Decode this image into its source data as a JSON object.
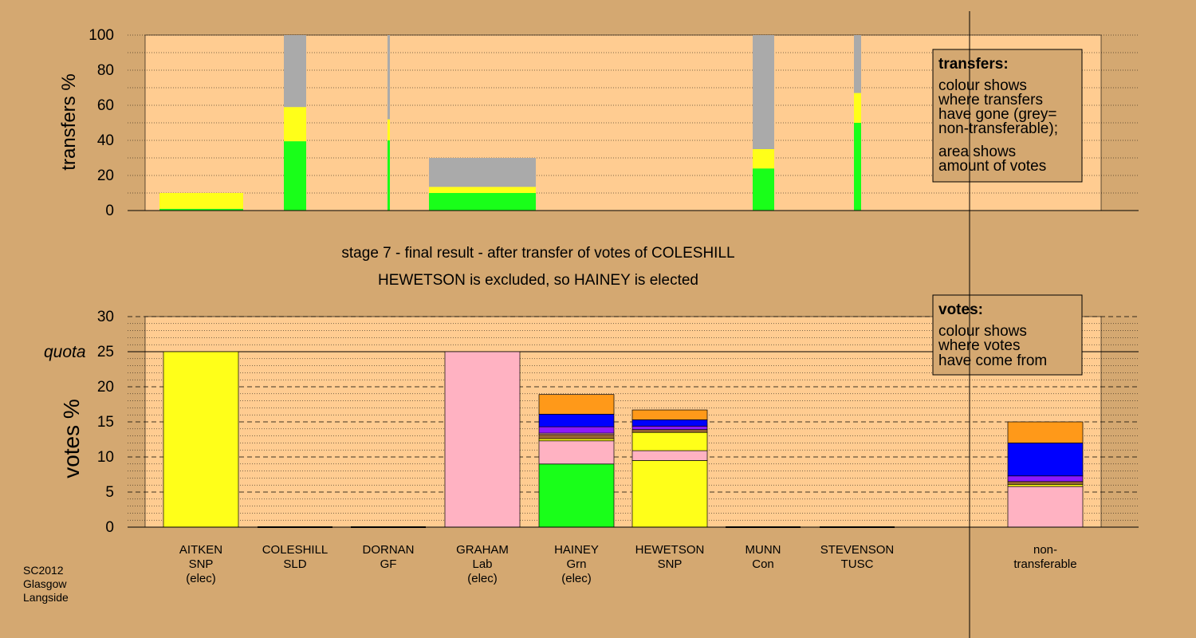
{
  "source_note": [
    "SC2012",
    "Glasgow",
    "Langside"
  ],
  "colors": {
    "background": "#d4a871",
    "panel": "#ffcc91",
    "green": "#19ff19",
    "yellow": "#ffff19",
    "grey": "#aaaaaa",
    "pink": "#ffb2c2",
    "purple": "#8c19ff",
    "blue": "#0000ff",
    "orange": "#ff9919",
    "brown": "#996633"
  },
  "chart_data": [
    {
      "type": "bar",
      "ylabel": "transfers %",
      "ylim": [
        0,
        100
      ],
      "yticks": [
        0,
        20,
        40,
        60,
        80,
        100
      ],
      "bars": [
        {
          "segments": [
            {
              "color": "green",
              "value": 1
            },
            {
              "color": "yellow",
              "value": 9
            }
          ]
        },
        {
          "segments": [
            {
              "color": "green",
              "value": 39.5
            },
            {
              "color": "yellow",
              "value": 19.5
            },
            {
              "color": "grey",
              "value": 41
            }
          ]
        },
        {
          "segments": [
            {
              "color": "green",
              "value": 40
            },
            {
              "color": "yellow",
              "value": 12
            },
            {
              "color": "grey",
              "value": 48
            }
          ]
        },
        {
          "segments": [
            {
              "color": "green",
              "value": 10
            },
            {
              "color": "yellow",
              "value": 3.5
            },
            {
              "color": "grey",
              "value": 16.5
            }
          ]
        },
        {
          "segments": [
            {
              "color": "green",
              "value": 24
            },
            {
              "color": "yellow",
              "value": 11
            },
            {
              "color": "grey",
              "value": 65
            }
          ]
        },
        {
          "segments": [
            {
              "color": "green",
              "value": 50
            },
            {
              "color": "yellow",
              "value": 17
            },
            {
              "color": "grey",
              "value": 33
            }
          ]
        }
      ],
      "legend": {
        "title": "transfers:",
        "lines": [
          "colour shows",
          "where transfers",
          "have gone (grey=",
          "non-transferable);",
          "area shows",
          "amount of votes"
        ]
      }
    },
    {
      "type": "bar",
      "title": "stage 7 - final result - after transfer of votes of COLESHILL",
      "subtitle": "HEWETSON is excluded, so HAINEY is elected",
      "ylabel": "votes %",
      "ylim": [
        0,
        30
      ],
      "yticks": [
        0,
        5,
        10,
        15,
        20,
        25,
        30
      ],
      "quota": {
        "label": "quota",
        "value": 25
      },
      "categories": [
        {
          "name": "AITKEN",
          "party": "SNP",
          "note": "(elec)",
          "segments": [
            {
              "color": "yellow",
              "value": 25
            }
          ]
        },
        {
          "name": "COLESHILL",
          "party": "SLD",
          "note": "",
          "segments": []
        },
        {
          "name": "DORNAN",
          "party": "GF",
          "note": "",
          "segments": []
        },
        {
          "name": "GRAHAM",
          "party": "Lab",
          "note": "(elec)",
          "segments": [
            {
              "color": "pink",
              "value": 25
            }
          ]
        },
        {
          "name": "HAINEY",
          "party": "Grn",
          "note": "(elec)",
          "segments": [
            {
              "color": "green",
              "value": 9
            },
            {
              "color": "pink",
              "value": 3.3
            },
            {
              "color": "yellow",
              "value": 0.3
            },
            {
              "color": "brown",
              "value": 0.6
            },
            {
              "color": "pink",
              "value": 0.2
            },
            {
              "color": "purple",
              "value": 0.9
            },
            {
              "color": "blue",
              "value": 1.8
            },
            {
              "color": "orange",
              "value": 2.8
            }
          ]
        },
        {
          "name": "HEWETSON",
          "party": "SNP",
          "note": "",
          "segments": [
            {
              "color": "yellow",
              "value": 9.5
            },
            {
              "color": "pink",
              "value": 1.4
            },
            {
              "color": "yellow",
              "value": 2.6
            },
            {
              "color": "brown",
              "value": 0.4
            },
            {
              "color": "purple",
              "value": 0.5
            },
            {
              "color": "blue",
              "value": 0.9
            },
            {
              "color": "orange",
              "value": 1.4
            }
          ]
        },
        {
          "name": "MUNN",
          "party": "Con",
          "note": "",
          "segments": []
        },
        {
          "name": "STEVENSON",
          "party": "TUSC",
          "note": "",
          "segments": []
        },
        {
          "name": "non-",
          "party": "transferable",
          "note": "",
          "segments": [
            {
              "color": "pink",
              "value": 5.8
            },
            {
              "color": "yellow",
              "value": 0.3
            },
            {
              "color": "brown",
              "value": 0.4
            },
            {
              "color": "purple",
              "value": 0.8
            },
            {
              "color": "blue",
              "value": 4.7
            },
            {
              "color": "orange",
              "value": 3
            }
          ]
        }
      ],
      "legend": {
        "title": "votes:",
        "lines": [
          "colour shows",
          "where votes",
          "have come from"
        ]
      }
    }
  ]
}
